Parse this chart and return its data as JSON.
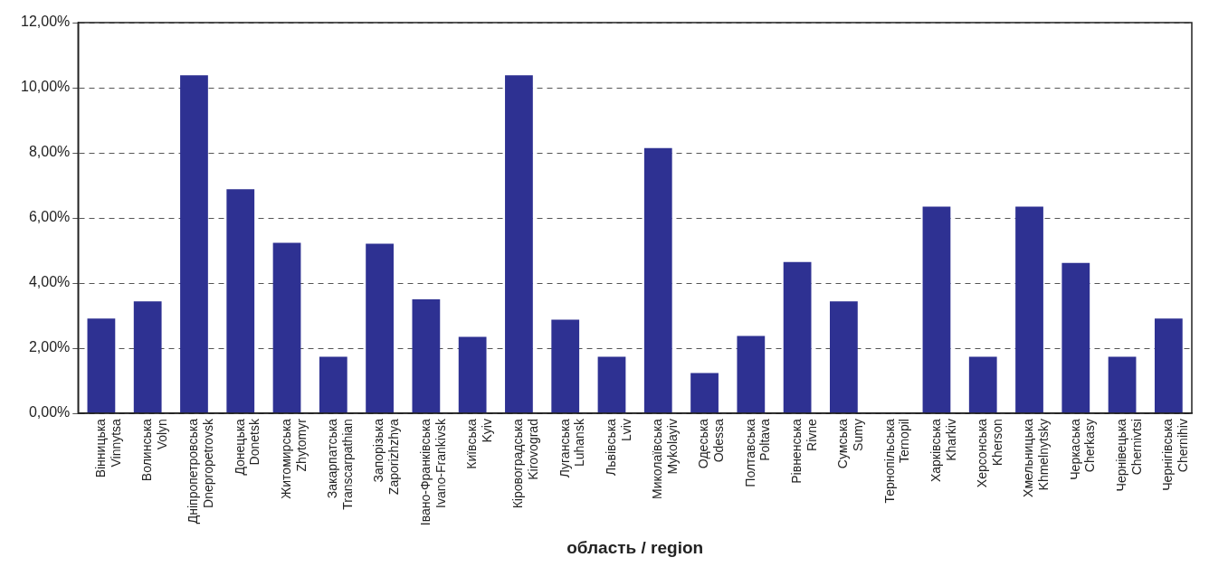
{
  "chart_data": {
    "type": "bar",
    "xlabel": "область / region",
    "categories": [
      "Вінницька\nVinnytsa",
      "Волинська\nVolyn",
      "Дніпропетровська\nDnepropetrovsk",
      "Донецька\nDonetsk",
      "Житомирська\nZhytomyr",
      "Закарпатська\nTranscarpathian",
      "Запорізька\nZaporizhzhya",
      "Івано-Франківська\nIvano-Frankivsk",
      "Київська\nKyiv",
      "Кіровоградська\nKirovograd",
      "Луганська\nLuhansk",
      "Львівська\nLviv",
      "Миколаївська\nMykolayiv",
      "Одеська\nOdessa",
      "Полтавська\nPoltava",
      "Рівненська\nRivne",
      "Сумська\nSumy",
      "Тернопільська\nTernopil",
      "Харківська\nKharkiv",
      "Херсонська\nKherson",
      "Хмельницька\nKhmelnytsky",
      "Черкаська\nCherkasy",
      "Чернівецька\nChernivtsi",
      "Чернігівська\nChernihiv"
    ],
    "values": [
      2.91,
      3.44,
      10.38,
      6.88,
      5.24,
      1.74,
      5.21,
      3.5,
      2.35,
      10.38,
      2.88,
      1.74,
      8.15,
      1.24,
      2.38,
      4.65,
      3.44,
      0,
      6.35,
      1.74,
      6.35,
      4.62,
      1.74,
      2.91
    ],
    "color": "#2e3192",
    "ylim": [
      0,
      12
    ],
    "yticks": [
      {
        "value": 0,
        "label": "0,00%"
      },
      {
        "value": 2,
        "label": "2,00%"
      },
      {
        "value": 4,
        "label": "4,00%"
      },
      {
        "value": 6,
        "label": "6,00%"
      },
      {
        "value": 8,
        "label": "8,00%"
      },
      {
        "value": 10,
        "label": "10,00%"
      },
      {
        "value": 12,
        "label": "12,00%"
      }
    ],
    "grid": "y",
    "legend": false
  }
}
